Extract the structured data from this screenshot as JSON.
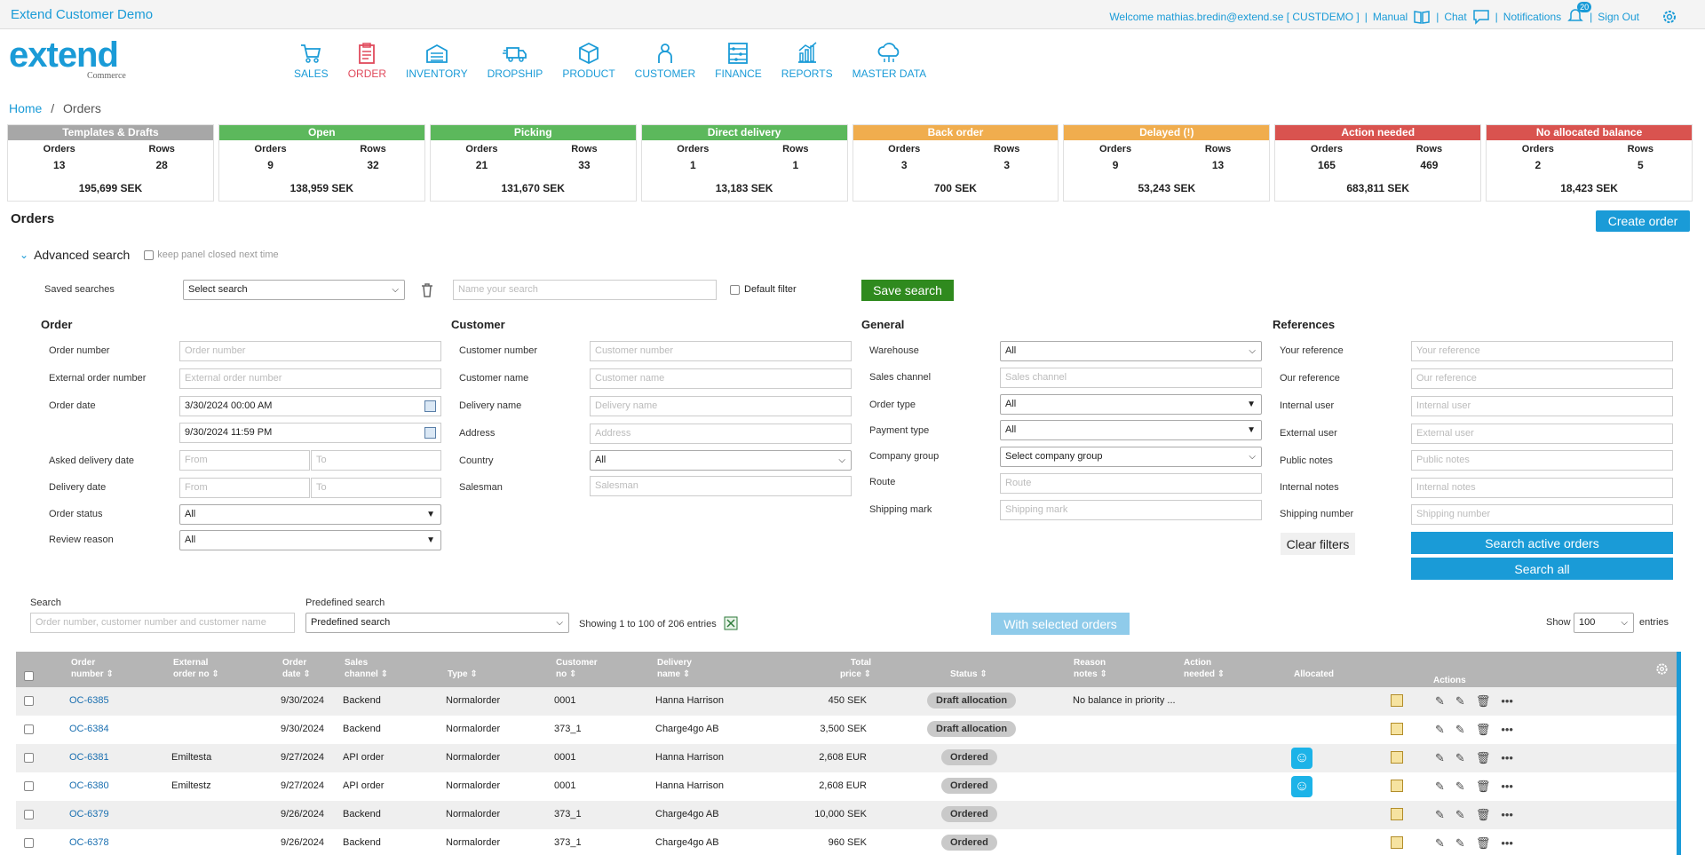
{
  "app": {
    "title": "Extend Customer Demo",
    "welcome": "Welcome mathias.bredin@extend.se [ CUSTDEMO ]",
    "manual": "Manual",
    "chat": "Chat",
    "notifications": "Notifications",
    "notifications_count": "20",
    "sign_out": "Sign Out",
    "logo_text": "extend",
    "logo_sub": "Commerce"
  },
  "nav": {
    "sales": "SALES",
    "order": "ORDER",
    "inventory": "INVENTORY",
    "dropship": "DROPSHIP",
    "product": "PRODUCT",
    "customer": "CUSTOMER",
    "finance": "FINANCE",
    "reports": "REPORTS",
    "master_data": "MASTER DATA"
  },
  "breadcrumb": {
    "home": "Home",
    "sep": "/",
    "current": "Orders"
  },
  "cards": [
    {
      "title": "Templates & Drafts",
      "color": "#a7a7a7",
      "orders_label": "Orders",
      "rows_label": "Rows",
      "orders": "13",
      "rows": "28",
      "total": "195,699 SEK"
    },
    {
      "title": "Open",
      "color": "#5cb85c",
      "orders_label": "Orders",
      "rows_label": "Rows",
      "orders": "9",
      "rows": "32",
      "total": "138,959 SEK"
    },
    {
      "title": "Picking",
      "color": "#5cb85c",
      "orders_label": "Orders",
      "rows_label": "Rows",
      "orders": "21",
      "rows": "33",
      "total": "131,670 SEK"
    },
    {
      "title": "Direct delivery",
      "color": "#5cb85c",
      "orders_label": "Orders",
      "rows_label": "Rows",
      "orders": "1",
      "rows": "1",
      "total": "13,183 SEK"
    },
    {
      "title": "Back order",
      "color": "#f0ad4e",
      "orders_label": "Orders",
      "rows_label": "Rows",
      "orders": "3",
      "rows": "3",
      "total": "700 SEK"
    },
    {
      "title": "Delayed (!)",
      "color": "#f0ad4e",
      "orders_label": "Orders",
      "rows_label": "Rows",
      "orders": "9",
      "rows": "13",
      "total": "53,243 SEK"
    },
    {
      "title": "Action needed",
      "color": "#d9534f",
      "orders_label": "Orders",
      "rows_label": "Rows",
      "orders": "165",
      "rows": "469",
      "total": "683,811 SEK"
    },
    {
      "title": "No allocated balance",
      "color": "#d9534f",
      "orders_label": "Orders",
      "rows_label": "Rows",
      "orders": "2",
      "rows": "5",
      "total": "18,423 SEK"
    }
  ],
  "orders_title": "Orders",
  "create_order": "Create order",
  "advanced_search": {
    "title": "Advanced search",
    "keep_closed": "keep panel closed next time",
    "saved_searches": "Saved searches",
    "select_search": "Select search",
    "name_search_placeholder": "Name your search",
    "default_filter": "Default filter",
    "save_search": "Save search"
  },
  "order_col": {
    "heading": "Order",
    "order_number": "Order number",
    "order_number_ph": "Order number",
    "external_order_number": "External order number",
    "external_order_number_ph": "External order number",
    "order_date": "Order date",
    "order_date_from": "3/30/2024 00:00 AM",
    "order_date_to": "9/30/2024 11:59 PM",
    "asked_delivery_date": "Asked delivery date",
    "delivery_date": "Delivery date",
    "from_ph": "From",
    "to_ph": "To",
    "order_status": "Order status",
    "order_status_val": "All",
    "review_reason": "Review reason",
    "review_reason_val": "All"
  },
  "customer_col": {
    "heading": "Customer",
    "customer_number": "Customer number",
    "customer_number_ph": "Customer number",
    "customer_name": "Customer name",
    "customer_name_ph": "Customer name",
    "delivery_name": "Delivery name",
    "delivery_name_ph": "Delivery name",
    "address": "Address",
    "address_ph": "Address",
    "country": "Country",
    "country_val": "All",
    "salesman": "Salesman",
    "salesman_ph": "Salesman"
  },
  "general_col": {
    "heading": "General",
    "warehouse": "Warehouse",
    "warehouse_val": "All",
    "sales_channel": "Sales channel",
    "sales_channel_ph": "Sales channel",
    "order_type": "Order type",
    "order_type_val": "All",
    "payment_type": "Payment type",
    "payment_type_val": "All",
    "company_group": "Company group",
    "company_group_val": "Select company group",
    "route": "Route",
    "route_ph": "Route",
    "shipping_mark": "Shipping mark",
    "shipping_mark_ph": "Shipping mark"
  },
  "references_col": {
    "heading": "References",
    "your_reference": "Your reference",
    "your_reference_ph": "Your reference",
    "our_reference": "Our reference",
    "our_reference_ph": "Our reference",
    "internal_user": "Internal user",
    "internal_user_ph": "Internal user",
    "external_user": "External user",
    "external_user_ph": "External user",
    "public_notes": "Public notes",
    "public_notes_ph": "Public notes",
    "internal_notes": "Internal notes",
    "internal_notes_ph": "Internal notes",
    "shipping_number": "Shipping number",
    "shipping_number_ph": "Shipping number",
    "clear_filters": "Clear filters",
    "search_active": "Search active orders",
    "search_all": "Search all"
  },
  "list": {
    "search_label": "Search",
    "search_ph": "Order number, customer number and customer name",
    "predefined_label": "Predefined search",
    "predefined_val": "Predefined search",
    "showing": "Showing 1 to 100 of 206 entries",
    "with_selected": "With selected orders",
    "show": "Show",
    "show_val": "100",
    "entries": "entries"
  },
  "columns": {
    "order_number": [
      "Order",
      "number"
    ],
    "external": [
      "External",
      "order no"
    ],
    "order_date": [
      "Order",
      "date"
    ],
    "sales_channel": [
      "Sales",
      "channel"
    ],
    "type": "Type",
    "customer_no": [
      "Customer",
      "no"
    ],
    "delivery_name": [
      "Delivery",
      "name"
    ],
    "total_price": [
      "Total",
      "price"
    ],
    "status": "Status",
    "reason_notes": [
      "Reason",
      "notes"
    ],
    "action_needed": [
      "Action",
      "needed"
    ],
    "allocated": "Allocated",
    "actions": "Actions"
  },
  "rows": [
    {
      "order": "OC-6385",
      "ext": "",
      "date": "9/30/2024",
      "channel": "Backend",
      "type": "Normalorder",
      "cust": "0001",
      "name": "Hanna Harrison",
      "price": "450 SEK",
      "status": "Draft allocation",
      "reason": "No balance in priority ...",
      "alloc": false
    },
    {
      "order": "OC-6384",
      "ext": "",
      "date": "9/30/2024",
      "channel": "Backend",
      "type": "Normalorder",
      "cust": "373_1",
      "name": "Charge4go AB",
      "price": "3,500 SEK",
      "status": "Draft allocation",
      "reason": "",
      "alloc": false
    },
    {
      "order": "OC-6381",
      "ext": "Emiltesta",
      "date": "9/27/2024",
      "channel": "API order",
      "type": "Normalorder",
      "cust": "0001",
      "name": "Hanna Harrison",
      "price": "2,608 EUR",
      "status": "Ordered",
      "reason": "",
      "alloc": true
    },
    {
      "order": "OC-6380",
      "ext": "Emiltestz",
      "date": "9/27/2024",
      "channel": "API order",
      "type": "Normalorder",
      "cust": "0001",
      "name": "Hanna Harrison",
      "price": "2,608 EUR",
      "status": "Ordered",
      "reason": "",
      "alloc": true
    },
    {
      "order": "OC-6379",
      "ext": "",
      "date": "9/26/2024",
      "channel": "Backend",
      "type": "Normalorder",
      "cust": "373_1",
      "name": "Charge4go AB",
      "price": "10,000 SEK",
      "status": "Ordered",
      "reason": "",
      "alloc": false
    },
    {
      "order": "OC-6378",
      "ext": "",
      "date": "9/26/2024",
      "channel": "Backend",
      "type": "Normalorder",
      "cust": "373_1",
      "name": "Charge4go AB",
      "price": "960 SEK",
      "status": "Ordered",
      "reason": "",
      "alloc": false
    }
  ]
}
